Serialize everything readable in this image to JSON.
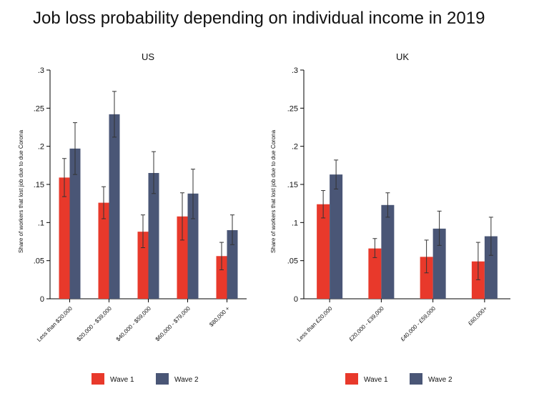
{
  "title": "Job loss probability depending on individual income in 2019",
  "colors": {
    "wave1": "#e8392b",
    "wave2": "#4a5676",
    "errorbar": "#333333",
    "axis": "#000000"
  },
  "chart_data": [
    {
      "type": "bar",
      "title": "US",
      "ylabel": "Share of workers that lost job due to due Corona",
      "xlabel": "",
      "ylim": [
        0,
        0.3
      ],
      "yticks": [
        0,
        0.05,
        0.1,
        0.15,
        0.2,
        0.25,
        0.3
      ],
      "ytick_labels": [
        "0",
        ".05",
        ".1",
        ".15",
        ".2",
        ".25",
        ".3"
      ],
      "categories": [
        "Less than $20,000",
        "$20,000 - $39,000",
        "$40,000 - $59,000",
        "$60,000 - $79,000",
        "$80,000 +"
      ],
      "series": [
        {
          "name": "Wave 1",
          "values": [
            0.159,
            0.126,
            0.088,
            0.108,
            0.056
          ],
          "ci_low": [
            0.134,
            0.105,
            0.067,
            0.077,
            0.038
          ],
          "ci_high": [
            0.184,
            0.147,
            0.11,
            0.139,
            0.074
          ]
        },
        {
          "name": "Wave 2",
          "values": [
            0.197,
            0.242,
            0.165,
            0.138,
            0.09
          ],
          "ci_low": [
            0.163,
            0.212,
            0.138,
            0.105,
            0.071
          ],
          "ci_high": [
            0.231,
            0.272,
            0.193,
            0.17,
            0.11
          ]
        }
      ],
      "legend": {
        "position": "bottom",
        "labels": [
          "Wave 1",
          "Wave 2"
        ]
      },
      "grid": false
    },
    {
      "type": "bar",
      "title": "UK",
      "ylabel": "Share of workers that lost job due to due Corona",
      "xlabel": "",
      "ylim": [
        0,
        0.3
      ],
      "yticks": [
        0,
        0.05,
        0.1,
        0.15,
        0.2,
        0.25,
        0.3
      ],
      "ytick_labels": [
        "0",
        ".05",
        ".1",
        ".15",
        ".2",
        ".25",
        ".3"
      ],
      "categories": [
        "Less than £20,000",
        "£20,000 - £39,000",
        "£40,000 - £59,000",
        "£60,000+"
      ],
      "series": [
        {
          "name": "Wave 1",
          "values": [
            0.124,
            0.066,
            0.055,
            0.049
          ],
          "ci_low": [
            0.106,
            0.054,
            0.034,
            0.025
          ],
          "ci_high": [
            0.142,
            0.079,
            0.077,
            0.074
          ]
        },
        {
          "name": "Wave 2",
          "values": [
            0.163,
            0.123,
            0.092,
            0.082
          ],
          "ci_low": [
            0.144,
            0.107,
            0.07,
            0.057
          ],
          "ci_high": [
            0.182,
            0.139,
            0.115,
            0.107
          ]
        }
      ],
      "legend": {
        "position": "bottom",
        "labels": [
          "Wave 1",
          "Wave 2"
        ]
      },
      "grid": false
    }
  ]
}
